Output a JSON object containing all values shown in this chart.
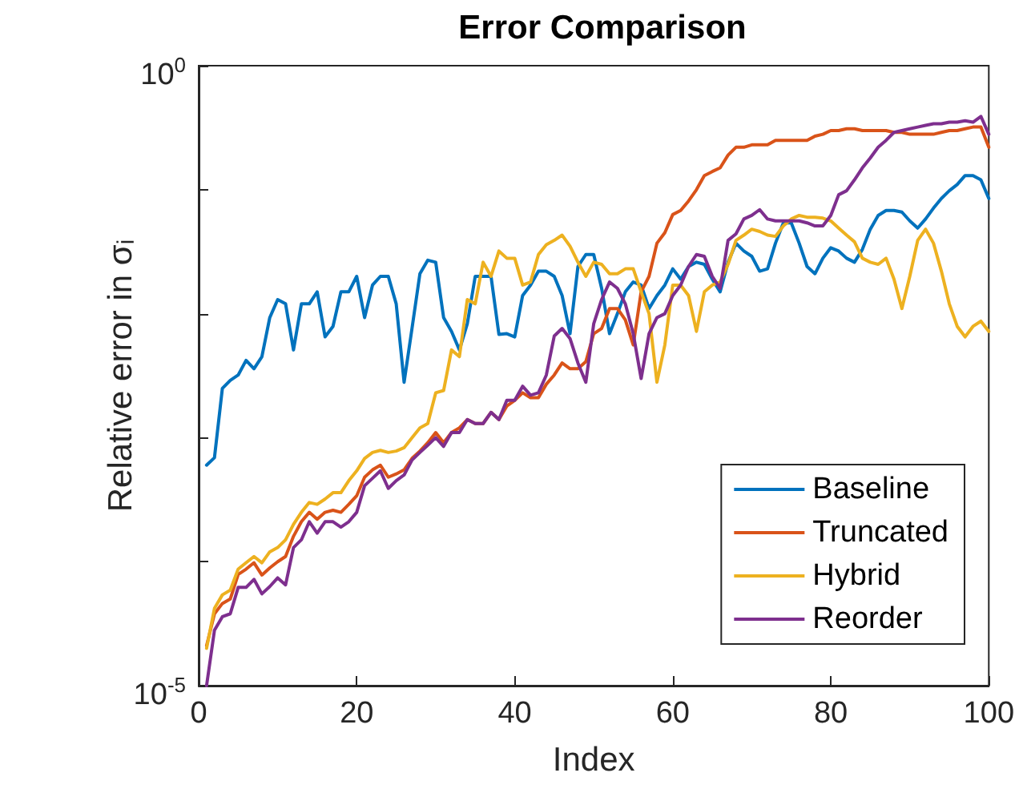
{
  "chart_data": {
    "type": "line",
    "title": "Error Comparison",
    "xlabel": "Index",
    "ylabel": "Relative error in σᵢ",
    "x": [
      1,
      2,
      3,
      4,
      5,
      6,
      7,
      8,
      9,
      10,
      11,
      12,
      13,
      14,
      15,
      16,
      17,
      18,
      19,
      20,
      21,
      22,
      23,
      24,
      25,
      26,
      27,
      28,
      29,
      30,
      31,
      32,
      33,
      34,
      35,
      36,
      37,
      38,
      39,
      40,
      41,
      42,
      43,
      44,
      45,
      46,
      47,
      48,
      49,
      50,
      51,
      52,
      53,
      54,
      55,
      56,
      57,
      58,
      59,
      60,
      61,
      62,
      63,
      64,
      65,
      66,
      67,
      68,
      69,
      70,
      71,
      72,
      73,
      74,
      75,
      76,
      77,
      78,
      79,
      80,
      81,
      82,
      83,
      84,
      85,
      86,
      87,
      88,
      89,
      90,
      91,
      92,
      93,
      94,
      95,
      96,
      97,
      98,
      99,
      100
    ],
    "series": [
      {
        "name": "Baseline",
        "color": "#0072bd",
        "values": [
          0.0006,
          0.00069,
          0.0025,
          0.0029,
          0.0032,
          0.0042,
          0.0036,
          0.0045,
          0.0093,
          0.013,
          0.012,
          0.0051,
          0.012,
          0.012,
          0.015,
          0.0065,
          0.0079,
          0.015,
          0.015,
          0.02,
          0.0093,
          0.017,
          0.02,
          0.02,
          0.012,
          0.0028,
          0.0076,
          0.021,
          0.027,
          0.026,
          0.0093,
          0.0072,
          0.0051,
          0.0083,
          0.02,
          0.02,
          0.02,
          0.0068,
          0.0069,
          0.0065,
          0.014,
          0.017,
          0.022,
          0.022,
          0.02,
          0.014,
          0.0069,
          0.024,
          0.03,
          0.03,
          0.016,
          0.0069,
          0.01,
          0.015,
          0.018,
          0.017,
          0.011,
          0.014,
          0.017,
          0.023,
          0.019,
          0.024,
          0.026,
          0.025,
          0.019,
          0.015,
          0.026,
          0.037,
          0.032,
          0.029,
          0.022,
          0.023,
          0.037,
          0.054,
          0.054,
          0.037,
          0.024,
          0.021,
          0.028,
          0.034,
          0.032,
          0.028,
          0.026,
          0.033,
          0.048,
          0.062,
          0.068,
          0.068,
          0.066,
          0.056,
          0.049,
          0.058,
          0.071,
          0.085,
          0.098,
          0.11,
          0.13,
          0.13,
          0.12,
          0.085
        ]
      },
      {
        "name": "Truncated",
        "color": "#d95319",
        "values": [
          2.1e-05,
          3.8e-05,
          4.6e-05,
          5e-05,
          7.9e-05,
          8.7e-05,
          9.8e-05,
          7.8e-05,
          8.9e-05,
          0.0001,
          0.00011,
          0.00016,
          0.00021,
          0.00025,
          0.00022,
          0.00025,
          0.00026,
          0.00025,
          0.00029,
          0.00034,
          0.00048,
          0.00055,
          0.0006,
          0.00048,
          0.00051,
          0.00055,
          0.00068,
          0.00078,
          0.00091,
          0.0011,
          0.00091,
          0.0011,
          0.0012,
          0.0014,
          0.0013,
          0.0013,
          0.0016,
          0.0014,
          0.0018,
          0.002,
          0.0023,
          0.0021,
          0.0021,
          0.0027,
          0.0032,
          0.004,
          0.0036,
          0.0036,
          0.0041,
          0.0069,
          0.0076,
          0.011,
          0.011,
          0.0089,
          0.0056,
          0.015,
          0.02,
          0.037,
          0.045,
          0.063,
          0.068,
          0.081,
          0.1,
          0.13,
          0.14,
          0.15,
          0.19,
          0.22,
          0.22,
          0.23,
          0.23,
          0.23,
          0.25,
          0.25,
          0.25,
          0.25,
          0.25,
          0.27,
          0.28,
          0.3,
          0.3,
          0.31,
          0.31,
          0.3,
          0.3,
          0.3,
          0.3,
          0.29,
          0.29,
          0.28,
          0.28,
          0.28,
          0.28,
          0.29,
          0.3,
          0.3,
          0.31,
          0.32,
          0.32,
          0.22
        ]
      },
      {
        "name": "Hybrid",
        "color": "#edb120",
        "values": [
          2e-05,
          4.2e-05,
          5.4e-05,
          5.9e-05,
          8.7e-05,
          9.8e-05,
          0.00011,
          9.8e-05,
          0.00012,
          0.00013,
          0.00015,
          0.0002,
          0.00025,
          0.0003,
          0.00029,
          0.00032,
          0.00036,
          0.00036,
          0.00045,
          0.00054,
          0.00068,
          0.00076,
          0.00079,
          0.00076,
          0.00078,
          0.00083,
          0.001,
          0.0012,
          0.0013,
          0.0023,
          0.0024,
          0.0051,
          0.0045,
          0.013,
          0.012,
          0.026,
          0.02,
          0.032,
          0.028,
          0.028,
          0.017,
          0.018,
          0.03,
          0.036,
          0.039,
          0.043,
          0.035,
          0.026,
          0.02,
          0.026,
          0.025,
          0.021,
          0.021,
          0.023,
          0.023,
          0.015,
          0.01,
          0.0028,
          0.0056,
          0.017,
          0.017,
          0.014,
          0.0072,
          0.015,
          0.017,
          0.018,
          0.025,
          0.039,
          0.043,
          0.048,
          0.046,
          0.043,
          0.042,
          0.051,
          0.058,
          0.062,
          0.06,
          0.06,
          0.059,
          0.056,
          0.049,
          0.043,
          0.038,
          0.028,
          0.026,
          0.025,
          0.028,
          0.019,
          0.011,
          0.02,
          0.039,
          0.048,
          0.037,
          0.022,
          0.012,
          0.0079,
          0.0065,
          0.0079,
          0.0087,
          0.0072
        ]
      },
      {
        "name": "Reorder",
        "color": "#7e2f8e",
        "values": [
          1e-05,
          2.8e-05,
          3.6e-05,
          3.8e-05,
          6.2e-05,
          6.2e-05,
          7.2e-05,
          5.5e-05,
          6.3e-05,
          7.4e-05,
          6.5e-05,
          0.00013,
          0.00015,
          0.00021,
          0.00017,
          0.00021,
          0.00021,
          0.00019,
          0.00021,
          0.00025,
          0.00041,
          0.00047,
          0.00054,
          0.00039,
          0.00045,
          0.0005,
          0.00066,
          0.00076,
          0.00087,
          0.001,
          0.00085,
          0.0011,
          0.0011,
          0.0014,
          0.0013,
          0.0013,
          0.0016,
          0.0014,
          0.002,
          0.002,
          0.0026,
          0.0022,
          0.0023,
          0.0032,
          0.0066,
          0.0076,
          0.0063,
          0.004,
          0.0028,
          0.0083,
          0.013,
          0.018,
          0.016,
          0.012,
          0.0069,
          0.003,
          0.0069,
          0.0093,
          0.01,
          0.014,
          0.017,
          0.024,
          0.03,
          0.029,
          0.02,
          0.016,
          0.039,
          0.044,
          0.058,
          0.062,
          0.069,
          0.058,
          0.056,
          0.056,
          0.056,
          0.056,
          0.054,
          0.051,
          0.051,
          0.062,
          0.091,
          0.098,
          0.12,
          0.15,
          0.18,
          0.22,
          0.25,
          0.29,
          0.3,
          0.31,
          0.32,
          0.33,
          0.34,
          0.34,
          0.35,
          0.35,
          0.36,
          0.35,
          0.39,
          0.28
        ]
      }
    ],
    "xlim": [
      0,
      100
    ],
    "xticks": [
      0,
      20,
      40,
      60,
      80,
      100
    ],
    "ylim": [
      1e-05,
      1
    ],
    "yticks": [
      {
        "value": 1e-05,
        "label": "10$^{-5}$"
      },
      {
        "value": 0.0001,
        "label": null
      },
      {
        "value": 0.001,
        "label": null
      },
      {
        "value": 0.01,
        "label": null
      },
      {
        "value": 0.1,
        "label": null
      },
      {
        "value": 1,
        "label": "10$^{0}$"
      }
    ],
    "log": "y",
    "grid": false,
    "legend": "bottom right",
    "marker": "none",
    "line_style": "solid"
  }
}
